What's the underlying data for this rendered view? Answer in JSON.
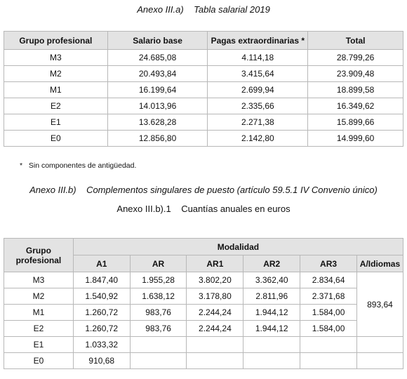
{
  "annex_a": {
    "title_prefix": "Anexo III.a)",
    "title_text": "Tabla salarial 2019",
    "headers": [
      "Grupo profesional",
      "Salario base",
      "Pagas extraordinarias *",
      "Total"
    ],
    "rows": [
      [
        "M3",
        "24.685,08",
        "4.114,18",
        "28.799,26"
      ],
      [
        "M2",
        "20.493,84",
        "3.415,64",
        "23.909,48"
      ],
      [
        "M1",
        "16.199,64",
        "2.699,94",
        "18.899,58"
      ],
      [
        "E2",
        "14.013,96",
        "2.335,66",
        "16.349,62"
      ],
      [
        "E1",
        "13.628,28",
        "2.271,38",
        "15.899,66"
      ],
      [
        "E0",
        "12.856,80",
        "2.142,80",
        "14.999,60"
      ]
    ],
    "footnote_mark": "*",
    "footnote": "Sin componentes de antigüedad."
  },
  "annex_b": {
    "title_prefix": "Anexo III.b)",
    "title_text": "Complementos singulares de puesto (artículo 59.5.1 IV Convenio único)",
    "subtitle_prefix": "Anexo III.b).1",
    "subtitle_text": "Cuantías anuales en euros",
    "group_header": "Grupo profesional",
    "modalidad_header": "Modalidad",
    "sub_headers": [
      "A1",
      "AR",
      "AR1",
      "AR2",
      "AR3",
      "A/Idiomas"
    ],
    "rows": [
      [
        "M3",
        "1.847,40",
        "1.955,28",
        "3.802,20",
        "3.362,40",
        "2.834,64"
      ],
      [
        "M2",
        "1.540,92",
        "1.638,12",
        "3.178,80",
        "2.811,96",
        "2.371,68"
      ],
      [
        "M1",
        "1.260,72",
        "983,76",
        "2.244,24",
        "1.944,12",
        "1.584,00"
      ],
      [
        "E2",
        "1.260,72",
        "983,76",
        "2.244,24",
        "1.944,12",
        "1.584,00"
      ],
      [
        "E1",
        "1.033,32",
        "",
        "",
        "",
        ""
      ],
      [
        "E0",
        "910,68",
        "",
        "",
        "",
        ""
      ]
    ],
    "idiomas_value": "893,64"
  }
}
